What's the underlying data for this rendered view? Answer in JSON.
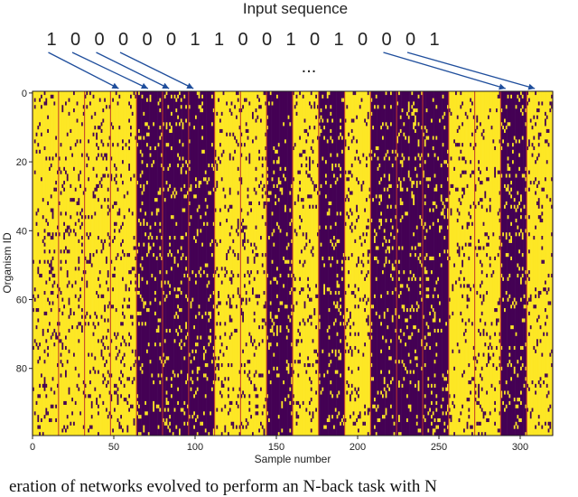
{
  "chart_data": {
    "type": "heatmap",
    "title": "Input sequence",
    "input_sequence": [
      "1",
      "0",
      "0",
      "0",
      "0",
      "0",
      "1",
      "1",
      "0",
      "0",
      "1",
      "0",
      "1",
      "0",
      "0",
      "0",
      "1"
    ],
    "ellipsis": "...",
    "xlabel": "Sample number",
    "ylabel": "Organism ID",
    "xlim": [
      0,
      320
    ],
    "ylim": [
      99,
      0
    ],
    "x_ticks": [
      0,
      50,
      100,
      150,
      200,
      250,
      300
    ],
    "y_ticks": [
      0,
      20,
      40,
      60,
      80
    ],
    "colors": {
      "high": "#fde725",
      "low": "#440154",
      "boundary": "#c0392b"
    },
    "block_size": 16,
    "block_values": [
      1,
      1,
      1,
      1,
      0,
      0,
      0,
      1,
      1,
      0,
      1,
      0,
      1,
      0,
      0,
      0,
      1,
      1,
      0,
      1
    ],
    "noise_fraction": 0.1,
    "arrows": [
      {
        "from_symbol": 1,
        "to_x": 53
      },
      {
        "from_symbol": 2,
        "to_x": 71
      },
      {
        "from_symbol": 3,
        "to_x": 84
      },
      {
        "from_symbol": 4,
        "to_x": 99
      },
      {
        "from_symbol": 15,
        "to_x": 291
      },
      {
        "from_symbol": 16,
        "to_x": 309
      }
    ]
  },
  "caption": "eration of networks evolved to perform an N-back task with N"
}
